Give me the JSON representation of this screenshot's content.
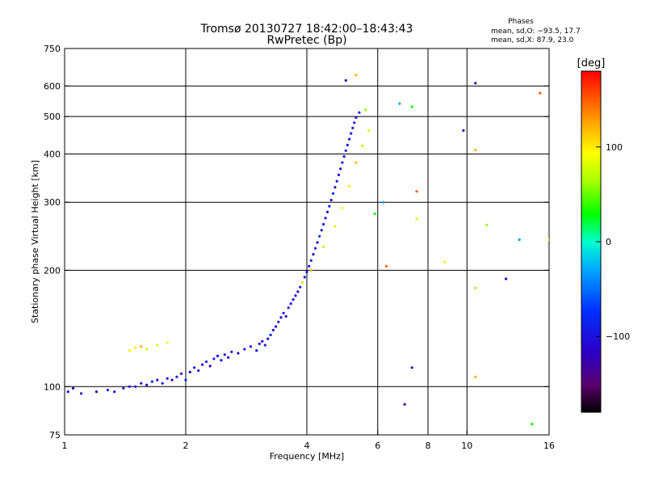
{
  "chart_data": {
    "type": "scatter",
    "title": "Tromsø 20130727 18:42:00–18:43:43",
    "subtitle": "RwPretec (Bp)",
    "xlabel": "Frequency [MHz]",
    "ylabel": "Stationary phase Virtual Height [km]",
    "x_scale": "log",
    "y_scale": "log",
    "xlim": [
      1,
      16
    ],
    "ylim": [
      75,
      750
    ],
    "x_ticks": [
      1,
      2,
      4,
      6,
      8,
      10,
      16
    ],
    "x_ticklabels": [
      "1",
      "2",
      "4",
      "6",
      "8",
      "10",
      "16"
    ],
    "x_gridlines": [
      2,
      4,
      6,
      8,
      10
    ],
    "y_ticks": [
      75,
      100,
      200,
      300,
      400,
      500,
      600,
      750
    ],
    "y_ticklabels": [
      "75",
      "100",
      "200",
      "300",
      "400",
      "500",
      "600",
      "750"
    ],
    "y_gridlines": [
      100,
      200,
      300,
      400,
      500,
      600
    ],
    "grid": true,
    "legend_title": "Phases",
    "legend_lines": [
      "mean, sd,O: −93.5, 17.7",
      "mean, sd,X:  87.9, 23.0"
    ],
    "colorbar": {
      "label": "[deg]",
      "range": [
        -180,
        180
      ],
      "tick_values": [
        100,
        0,
        -100
      ],
      "tick_labels": [
        "100",
        "0",
        "−100"
      ],
      "colormap": "rainbow (black→purple→blue→cyan→green→yellow→orange→red)"
    },
    "series": [
      {
        "description": "main O-mode trace",
        "phase_mean_deg": -93.5,
        "points": [
          [
            1.02,
            97
          ],
          [
            1.05,
            99
          ],
          [
            1.1,
            96
          ],
          [
            1.2,
            97
          ],
          [
            1.28,
            98
          ],
          [
            1.33,
            97
          ],
          [
            1.4,
            99
          ],
          [
            1.45,
            100
          ],
          [
            1.5,
            100
          ],
          [
            1.55,
            102
          ],
          [
            1.6,
            101
          ],
          [
            1.65,
            103
          ],
          [
            1.7,
            104
          ],
          [
            1.75,
            102
          ],
          [
            1.8,
            105
          ],
          [
            1.85,
            104
          ],
          [
            1.9,
            106
          ],
          [
            1.95,
            108
          ],
          [
            2.0,
            104
          ],
          [
            2.05,
            109
          ],
          [
            2.1,
            112
          ],
          [
            2.15,
            110
          ],
          [
            2.2,
            114
          ],
          [
            2.25,
            116
          ],
          [
            2.3,
            113
          ],
          [
            2.35,
            118
          ],
          [
            2.4,
            120
          ],
          [
            2.45,
            117
          ],
          [
            2.5,
            121
          ],
          [
            2.55,
            119
          ],
          [
            2.6,
            123
          ],
          [
            2.7,
            122
          ],
          [
            2.8,
            125
          ],
          [
            2.9,
            127
          ],
          [
            3.0,
            124
          ],
          [
            3.05,
            129
          ],
          [
            3.1,
            131
          ],
          [
            3.15,
            128
          ],
          [
            3.2,
            133
          ],
          [
            3.25,
            136
          ],
          [
            3.3,
            140
          ],
          [
            3.35,
            143
          ],
          [
            3.4,
            147
          ],
          [
            3.45,
            151
          ],
          [
            3.5,
            155
          ],
          [
            3.55,
            152
          ],
          [
            3.6,
            160
          ],
          [
            3.65,
            164
          ],
          [
            3.7,
            168
          ],
          [
            3.75,
            172
          ],
          [
            3.8,
            176
          ],
          [
            3.85,
            181
          ],
          [
            3.9,
            186
          ],
          [
            3.95,
            192
          ],
          [
            4.0,
            198
          ],
          [
            4.05,
            205
          ],
          [
            4.1,
            212
          ],
          [
            4.15,
            220
          ],
          [
            4.2,
            228
          ],
          [
            4.25,
            236
          ],
          [
            4.3,
            245
          ],
          [
            4.35,
            254
          ],
          [
            4.4,
            263
          ],
          [
            4.45,
            273
          ],
          [
            4.5,
            283
          ],
          [
            4.55,
            293
          ],
          [
            4.6,
            304
          ],
          [
            4.65,
            316
          ],
          [
            4.7,
            328
          ],
          [
            4.75,
            340
          ],
          [
            4.8,
            353
          ],
          [
            4.85,
            366
          ],
          [
            4.9,
            380
          ],
          [
            4.95,
            394
          ],
          [
            5.0,
            408
          ],
          [
            5.05,
            422
          ],
          [
            5.1,
            437
          ],
          [
            5.15,
            452
          ],
          [
            5.2,
            467
          ],
          [
            5.25,
            482
          ],
          [
            5.3,
            497
          ],
          [
            5.4,
            512
          ]
        ]
      },
      {
        "description": "X-mode trace",
        "phase_mean_deg": 87.9,
        "points": [
          [
            1.45,
            124
          ],
          [
            1.5,
            126
          ],
          [
            1.55,
            127
          ],
          [
            1.6,
            125
          ],
          [
            1.7,
            128
          ],
          [
            1.8,
            130
          ],
          [
            3.9,
            186
          ],
          [
            4.1,
            200
          ],
          [
            4.4,
            230
          ],
          [
            4.7,
            260
          ],
          [
            4.9,
            290
          ],
          [
            5.1,
            330
          ],
          [
            5.3,
            380
          ],
          [
            5.5,
            420
          ],
          [
            5.7,
            460
          ]
        ]
      },
      {
        "description": "scattered points",
        "points": [
          [
            5.0,
            620
          ],
          [
            5.3,
            640
          ],
          [
            5.6,
            520
          ],
          [
            6.8,
            540
          ],
          [
            7.3,
            530
          ],
          [
            7.5,
            320
          ],
          [
            7.5,
            272
          ],
          [
            9.8,
            460
          ],
          [
            10.5,
            610
          ],
          [
            10.5,
            410
          ],
          [
            11.2,
            262
          ],
          [
            13.5,
            240
          ],
          [
            14.5,
            80
          ],
          [
            15.2,
            575
          ],
          [
            16.0,
            240
          ],
          [
            7.0,
            90
          ],
          [
            7.3,
            112
          ],
          [
            10.5,
            106
          ],
          [
            10.5,
            180
          ],
          [
            6.2,
            300
          ],
          [
            5.9,
            280
          ],
          [
            6.3,
            205
          ],
          [
            8.8,
            210
          ],
          [
            12.5,
            190
          ]
        ]
      }
    ]
  }
}
